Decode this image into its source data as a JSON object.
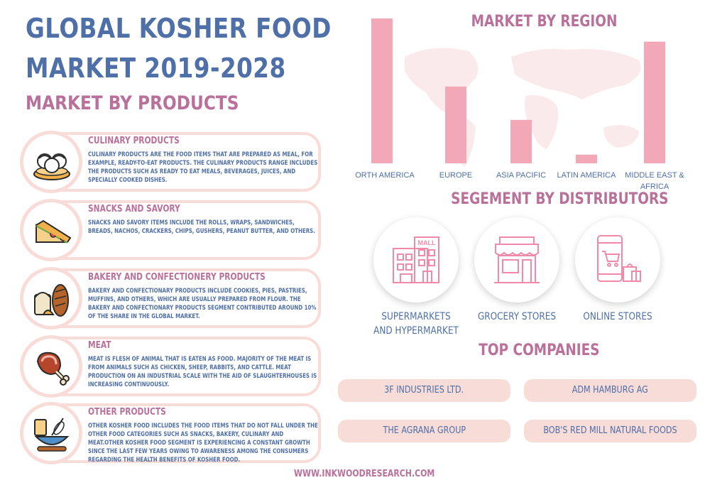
{
  "header": {
    "title_line1": "GLOBAL KOSHER FOOD",
    "title_line2": "MARKET 2019-2028",
    "products_heading": "MARKET BY PRODUCTS"
  },
  "products": [
    {
      "title": "CULINARY PRODUCTS",
      "desc": "CULINARY PRODUCTS ARE THE FOOD ITEMS THAT ARE PREPARED AS MEAL, FOR EXAMPLE, READY-TO-EAT PRODUCTS. THE CULINARY PRODUCTS RANGE INCLUDES THE PRODUCTS SUCH AS READY TO EAT MEALS, BEVERAGES, JUICES, AND SPECIALLY COOKED DISHES.",
      "icon": "dumplings-icon"
    },
    {
      "title": "SNACKS AND SAVORY",
      "desc": "SNACKS AND SAVORY ITEMS INCLUDE THE ROLLS, WRAPS, SANDWICHES, BREADS, NACHOS, CRACKERS, CHIPS, GUSHERS, PEANUT BUTTER, AND OTHERS.",
      "icon": "sandwich-icon"
    },
    {
      "title": "BAKERY AND CONFECTIONERY PRODUCTS",
      "desc": "BAKERY AND CONFECTIONARY PRODUCTS INCLUDE COOKIES, PIES, PASTRIES, MUFFINS, AND OTHERS, WHICH ARE USUALLY PREPARED FROM FLOUR. THE BAKERY AND CONFECTIONARY PRODUCTS SEGMENT CONTRIBUTED AROUND 10% OF THE SHARE IN THE GLOBAL MARKET.",
      "icon": "bread-icon"
    },
    {
      "title": "MEAT",
      "desc": "MEAT IS FLESH OF ANIMAL THAT IS EATEN AS FOOD. MAJORITY OF THE MEAT IS FROM ANIMALS SUCH AS CHICKEN, SHEEP, RABBITS, AND CATTLE. MEAT PRODUCTION ON AN INDUSTRIAL SCALE WITH THE AID OF SLAUGHTERHOUSES IS INCREASING CONTINUOUSLY.",
      "icon": "meat-icon"
    },
    {
      "title": "OTHER PRODUCTS",
      "desc": "OTHER KOSHER FOOD INCLUDES THE FOOD ITEMS THAT DO NOT FALL UNDER THE OTHER FOOD CATEGORIES SUCH AS SNACKS, BAKERY, CULINARY AND MEAT.OTHER KOSHER FOOD SEGMENT IS EXPERIENCING A CONSTANT GROWTH SINCE THE LAST FEW YEARS OWING TO AWARENESS AMONG THE CONSUMERS REGARDING THE HEALTH BENEFITS OF KOSHER FOOD.",
      "icon": "whisk-bowl-icon"
    }
  ],
  "chart_data": {
    "type": "bar",
    "title": "MARKET BY REGION",
    "categories": [
      "NORTH AMERICA",
      "EUROPE",
      "ASIA PACIFIC",
      "LATIN AMERICA",
      "MIDDLE EAST & AFRICA"
    ],
    "values": [
      100,
      53,
      30,
      6,
      84
    ],
    "bar_color": "#f3a8b8",
    "ylim": [
      0,
      100
    ],
    "grid": false,
    "legend": "none"
  },
  "distributors": {
    "heading": "SEGEMENT BY DISTRIBUTORS",
    "items": [
      {
        "label_line1": "SUPERMARKETS",
        "label_line2": "AND HYPERMARKET",
        "icon": "mall-icon",
        "sign": "MALL"
      },
      {
        "label_line1": "GROCERY STORES",
        "label_line2": "",
        "icon": "store-icon"
      },
      {
        "label_line1": "ONLINE STORES",
        "label_line2": "",
        "icon": "shopping-phone-icon"
      }
    ]
  },
  "companies": {
    "heading": "TOP COMPANIES",
    "items": [
      "3F INDUSTRIES LTD.",
      "ADM HAMBURG AG",
      "THE AGRANA GROUP",
      "BOB'S RED MILL NATURAL FOODS"
    ]
  },
  "footer": {
    "url": "WWW.INKWOODRESEARCH.COM"
  },
  "colors": {
    "blue": "#4f6fa8",
    "pink": "#b9709a",
    "light_pink": "#f8dcd8",
    "bar": "#f3a8b8"
  }
}
